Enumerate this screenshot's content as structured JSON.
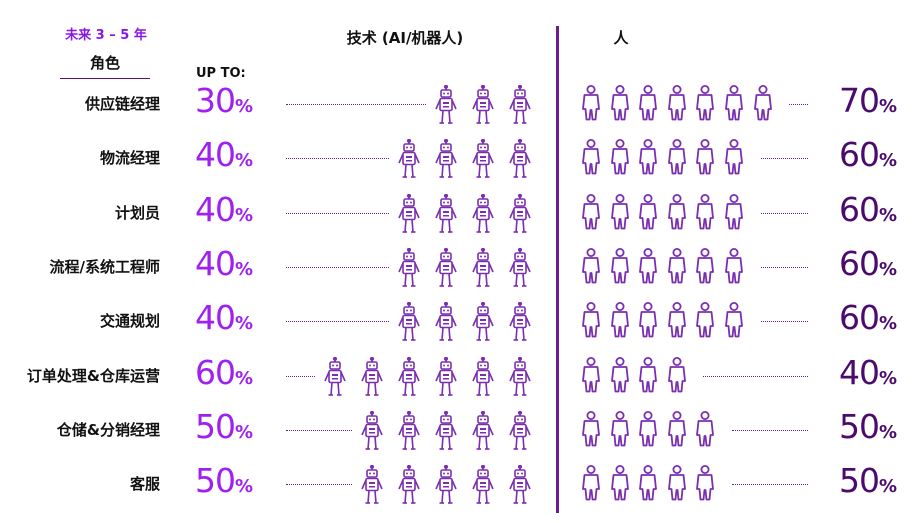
{
  "header": {
    "years": "未来 3 – 5 年",
    "role": "角色",
    "technology": "技术 (AI/机器人)",
    "people": "人",
    "up_to": "UP TO:"
  },
  "colors": {
    "technology_percent": "#a020f0",
    "people_percent": "#4b0a6e",
    "icon_stroke": "#7a2fb0",
    "divider": "#6b1f8c"
  },
  "icons": {
    "technology": "robot-icon",
    "people": "person-icon"
  },
  "chart_data": {
    "type": "table",
    "columns": [
      "角色",
      "技术 (AI/机器人)",
      "人"
    ],
    "unit": "%",
    "rows": [
      {
        "role": "供应链经理",
        "technology": 30,
        "people": 70,
        "technology_label": "30",
        "people_label": "70",
        "robots": 3,
        "persons": 7
      },
      {
        "role": "物流经理",
        "technology": 40,
        "people": 60,
        "technology_label": "40",
        "people_label": "60",
        "robots": 4,
        "persons": 6
      },
      {
        "role": "计划员",
        "technology": 40,
        "people": 60,
        "technology_label": "40",
        "people_label": "60",
        "robots": 4,
        "persons": 6
      },
      {
        "role": "流程/系统工程师",
        "technology": 40,
        "people": 60,
        "technology_label": "40",
        "people_label": "60",
        "robots": 4,
        "persons": 6
      },
      {
        "role": "交通规划",
        "technology": 40,
        "people": 60,
        "technology_label": "40",
        "people_label": "60",
        "robots": 4,
        "persons": 6
      },
      {
        "role": "订单处理&仓库运营",
        "technology": 60,
        "people": 40,
        "technology_label": "60",
        "people_label": "40",
        "robots": 6,
        "persons": 4
      },
      {
        "role": "仓储&分销经理",
        "technology": 50,
        "people": 50,
        "technology_label": "50",
        "people_label": "50",
        "robots": 5,
        "persons": 5
      },
      {
        "role": "客服",
        "technology": 50,
        "people": 50,
        "technology_label": "50",
        "people_label": "50",
        "robots": 5,
        "persons": 5
      }
    ]
  }
}
